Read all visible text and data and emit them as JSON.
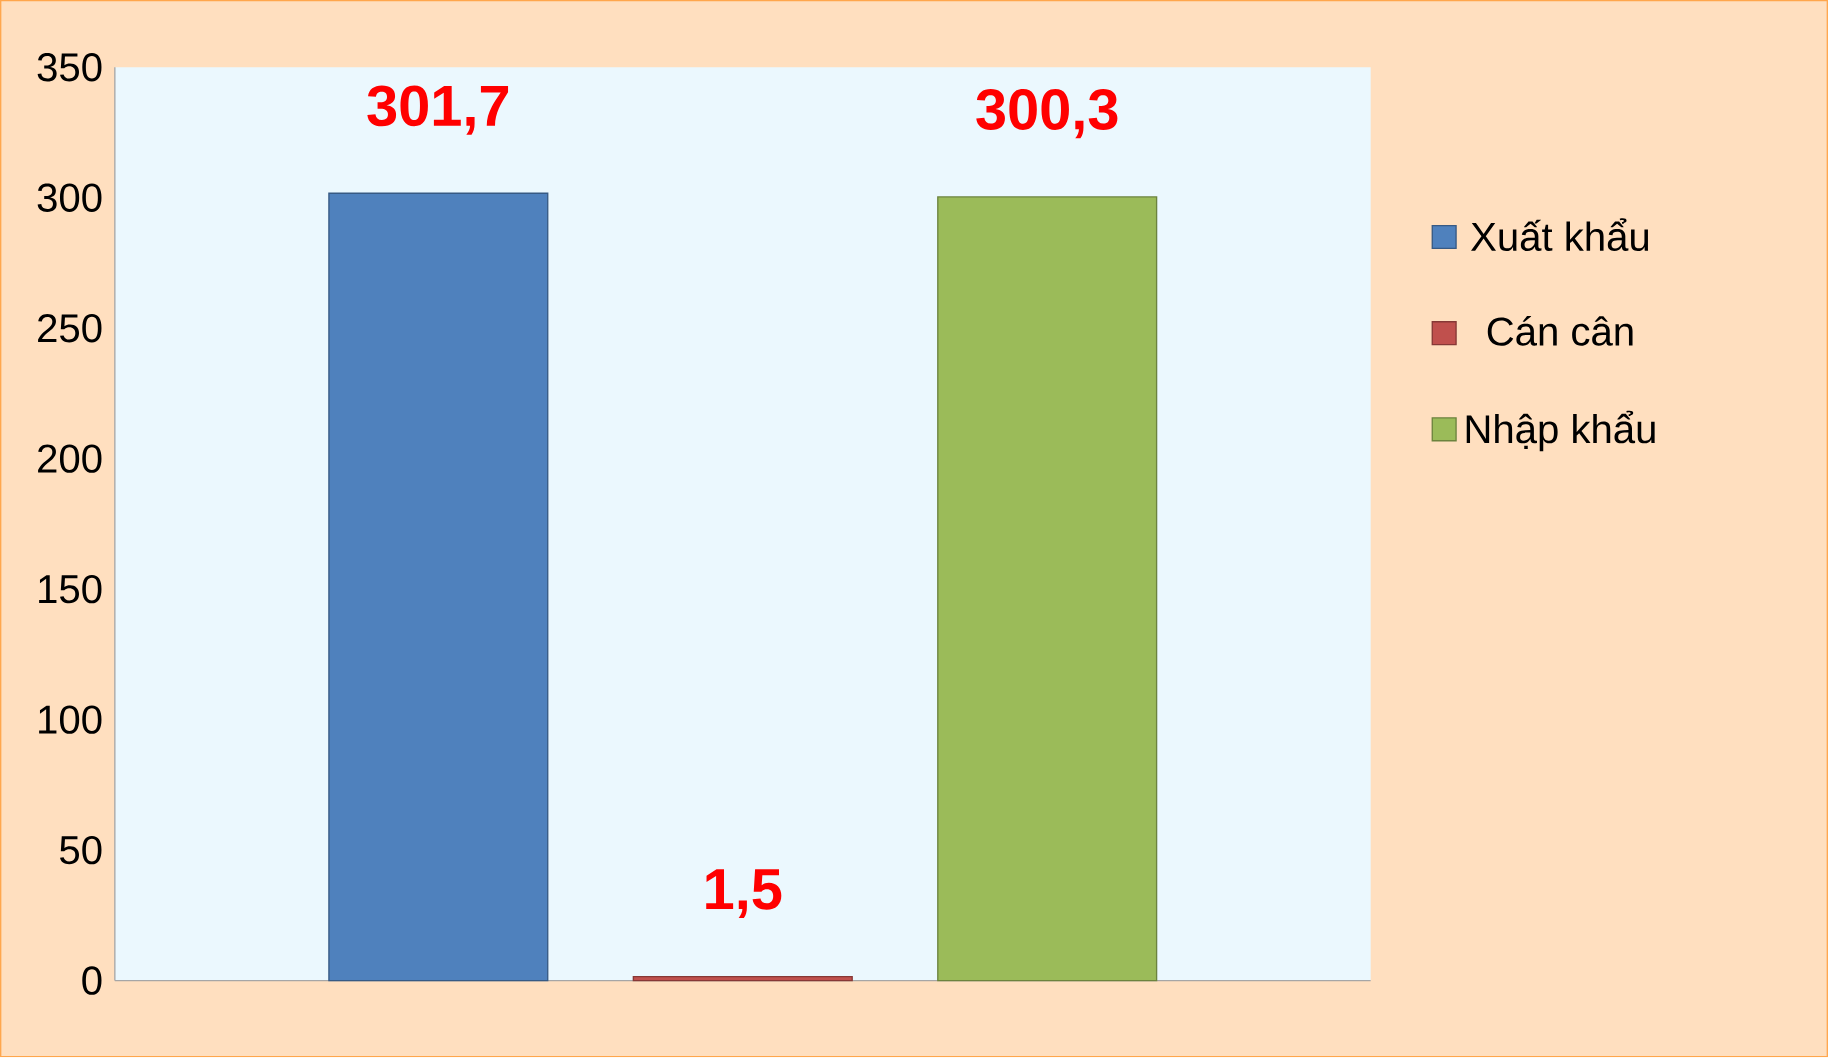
{
  "chart_data": {
    "type": "bar",
    "categories": [
      null
    ],
    "series": [
      {
        "name": "Xuất khẩu",
        "color": "#4f81bd",
        "values": [
          301.7
        ],
        "value_labels": [
          "301,7"
        ]
      },
      {
        "name": "Cán cân",
        "color": "#c0504d",
        "values": [
          1.5
        ],
        "value_labels": [
          "1,5"
        ]
      },
      {
        "name": "Nhập khẩu",
        "color": "#9bbb59",
        "values": [
          300.3
        ],
        "value_labels": [
          "300,3"
        ]
      }
    ],
    "ylim": [
      0,
      350
    ],
    "yticks": [
      0,
      50,
      100,
      150,
      200,
      250,
      300,
      350
    ],
    "legend": "right"
  }
}
